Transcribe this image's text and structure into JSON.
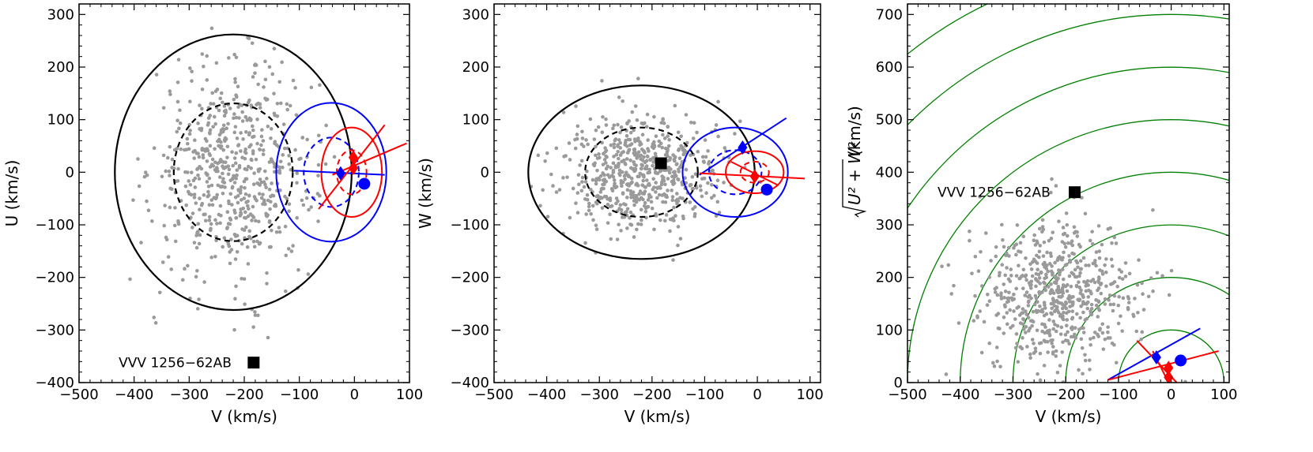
{
  "colors": {
    "scatter": "#9a9a9a",
    "thick_disk": "#000000",
    "thin_disk_blue": "#0000ff",
    "halo_red": "#ff0000",
    "energy_contour": "#008000"
  },
  "chart_data": [
    {
      "type": "scatter",
      "panel": "U-V",
      "xlabel": "V (km/s)",
      "ylabel": "U (km/s)",
      "xlim": [
        -500,
        100
      ],
      "ylim": [
        -400,
        320
      ],
      "xticks": [
        -500,
        -400,
        -300,
        -200,
        -100,
        0,
        100
      ],
      "yticks": [
        -400,
        -300,
        -200,
        -100,
        0,
        100,
        200,
        300
      ],
      "xtick_labels": [
        "−500",
        "−400",
        "−300",
        "−200",
        "−100",
        "0",
        "100"
      ],
      "ytick_labels": [
        "−400",
        "−300",
        "−200",
        "−100",
        "0",
        "100",
        "200",
        "300"
      ],
      "population": {
        "center": [
          -220,
          0
        ],
        "sd": [
          72,
          100
        ],
        "count": 620
      },
      "ellipses": [
        {
          "name": "halo-3sigma",
          "center": [
            -220,
            0
          ],
          "radii": [
            215,
            262
          ],
          "color": "#000000",
          "dashed": false
        },
        {
          "name": "halo-1.5sigma",
          "center": [
            -220,
            0
          ],
          "radii": [
            108,
            131
          ],
          "color": "#000000",
          "dashed": true
        },
        {
          "name": "thick-3sigma",
          "center": [
            -42,
            0
          ],
          "radii": [
            100,
            132
          ],
          "color": "#0000ff",
          "dashed": false
        },
        {
          "name": "thick-1.5sigma",
          "center": [
            -42,
            0
          ],
          "radii": [
            50,
            66
          ],
          "color": "#0000ff",
          "dashed": true
        },
        {
          "name": "thin-3sigma",
          "center": [
            -5,
            0
          ],
          "radii": [
            55,
            85
          ],
          "color": "#ff0000",
          "dashed": false
        },
        {
          "name": "thin-1.5sigma",
          "center": [
            -5,
            0
          ],
          "radii": [
            27,
            42
          ],
          "color": "#ff0000",
          "dashed": true
        }
      ],
      "segments": [
        {
          "from": [
            -110,
            3
          ],
          "to": [
            55,
            -5
          ],
          "color": "#0000ff"
        },
        {
          "from": [
            -65,
            -70
          ],
          "to": [
            55,
            90
          ],
          "color": "#ff0000"
        },
        {
          "from": [
            -40,
            -5
          ],
          "to": [
            95,
            55
          ],
          "color": "#ff0000"
        }
      ],
      "markers": [
        {
          "name": "blue-diamond",
          "x": -25,
          "y": -2,
          "shape": "diamond",
          "color": "#0000ff"
        },
        {
          "name": "blue-circle",
          "x": 18,
          "y": -22,
          "shape": "circle",
          "color": "#0000ff"
        },
        {
          "name": "red-diamond-1",
          "x": -2,
          "y": 28,
          "shape": "diamond",
          "color": "#ff0000"
        },
        {
          "name": "red-diamond-2",
          "x": -2,
          "y": 8,
          "shape": "diamond",
          "color": "#ff0000"
        },
        {
          "name": "vvv-square",
          "x": -183,
          "y": -362,
          "shape": "square",
          "color": "#000000"
        }
      ],
      "annotation": {
        "text": "VVV 1256−62AB",
        "x": -428,
        "y": -362
      }
    },
    {
      "type": "scatter",
      "panel": "W-V",
      "xlabel": "V (km/s)",
      "ylabel": "W (km/s)",
      "xlim": [
        -500,
        120
      ],
      "ylim": [
        -400,
        320
      ],
      "xticks": [
        -500,
        -400,
        -300,
        -200,
        -100,
        0,
        100
      ],
      "yticks": [
        -400,
        -300,
        -200,
        -100,
        0,
        100,
        200,
        300
      ],
      "xtick_labels": [
        "−500",
        "−400",
        "−300",
        "−200",
        "−100",
        "0",
        "100"
      ],
      "ytick_labels": [
        "−400",
        "−300",
        "−200",
        "−100",
        "0",
        "100",
        "200",
        "300"
      ],
      "population": {
        "center": [
          -220,
          0
        ],
        "sd": [
          72,
          55
        ],
        "count": 620
      },
      "ellipses": [
        {
          "name": "halo-3sigma",
          "center": [
            -220,
            0
          ],
          "radii": [
            215,
            165
          ],
          "color": "#000000",
          "dashed": false
        },
        {
          "name": "halo-1.5sigma",
          "center": [
            -220,
            0
          ],
          "radii": [
            107,
            85
          ],
          "color": "#000000",
          "dashed": true
        },
        {
          "name": "thick-3sigma",
          "center": [
            -42,
            0
          ],
          "radii": [
            100,
            85
          ],
          "color": "#0000ff",
          "dashed": false
        },
        {
          "name": "thick-1.5sigma",
          "center": [
            -42,
            0
          ],
          "radii": [
            50,
            42
          ],
          "color": "#0000ff",
          "dashed": true
        },
        {
          "name": "thin-3sigma",
          "center": [
            -5,
            0
          ],
          "radii": [
            55,
            40
          ],
          "color": "#ff0000",
          "dashed": false
        },
        {
          "name": "thin-1.5sigma",
          "center": [
            -5,
            0
          ],
          "radii": [
            27,
            20
          ],
          "color": "#ff0000",
          "dashed": true
        }
      ],
      "segments": [
        {
          "from": [
            -110,
            -5
          ],
          "to": [
            55,
            103
          ],
          "color": "#0000ff"
        },
        {
          "from": [
            -110,
            -2
          ],
          "to": [
            90,
            -12
          ],
          "color": "#ff0000"
        },
        {
          "from": [
            -50,
            20
          ],
          "to": [
            40,
            -25
          ],
          "color": "#ff0000"
        }
      ],
      "markers": [
        {
          "name": "blue-diamond",
          "x": -28,
          "y": 47,
          "shape": "diamond",
          "color": "#0000ff"
        },
        {
          "name": "blue-circle",
          "x": 18,
          "y": -33,
          "shape": "circle",
          "color": "#0000ff"
        },
        {
          "name": "red-diamond",
          "x": -5,
          "y": -8,
          "shape": "diamond",
          "color": "#ff0000"
        },
        {
          "name": "black-square",
          "x": -183,
          "y": 17,
          "shape": "square",
          "color": "#000000"
        }
      ],
      "annotation": null
    },
    {
      "type": "scatter",
      "panel": "Toomre",
      "xlabel": "V (km/s)",
      "ylabel": "√U² + W² (km/s)",
      "ylabel_radicand": "U² + W²",
      "ylabel_unit": " (km/s)",
      "xlim": [
        -500,
        110
      ],
      "ylim": [
        0,
        720
      ],
      "xticks": [
        -500,
        -400,
        -300,
        -200,
        -100,
        0,
        100
      ],
      "yticks": [
        0,
        100,
        200,
        300,
        400,
        500,
        600,
        700
      ],
      "xtick_labels": [
        "−500",
        "−400",
        "−300",
        "−200",
        "−100",
        "0",
        "100"
      ],
      "ytick_labels": [
        "0",
        "100",
        "200",
        "300",
        "400",
        "500",
        "600",
        "700"
      ],
      "population": {
        "center": [
          -215,
          165
        ],
        "sd": [
          75,
          70
        ],
        "count": 620
      },
      "arcs": {
        "center": [
          0,
          0
        ],
        "radii": [
          100,
          200,
          300,
          400,
          500,
          600,
          700,
          800
        ],
        "color": "#008000"
      },
      "ellipses": [],
      "segments": [
        {
          "from": [
            -120,
            5
          ],
          "to": [
            55,
            103
          ],
          "color": "#0000ff"
        },
        {
          "from": [
            -120,
            5
          ],
          "to": [
            90,
            60
          ],
          "color": "#ff0000"
        },
        {
          "from": [
            -65,
            80
          ],
          "to": [
            20,
            -10
          ],
          "color": "#ff0000"
        },
        {
          "from": [
            -35,
            60
          ],
          "to": [
            -5,
            0
          ],
          "color": "#ff0000"
        }
      ],
      "markers": [
        {
          "name": "blue-diamond",
          "x": -28,
          "y": 48,
          "shape": "diamond",
          "color": "#0000ff"
        },
        {
          "name": "blue-circle",
          "x": 18,
          "y": 42,
          "shape": "circle",
          "color": "#0000ff"
        },
        {
          "name": "red-diamond-1",
          "x": -5,
          "y": 28,
          "shape": "diamond",
          "color": "#ff0000"
        },
        {
          "name": "red-diamond-2",
          "x": -5,
          "y": 10,
          "shape": "diamond",
          "color": "#ff0000"
        },
        {
          "name": "vvv-square",
          "x": -183,
          "y": 362,
          "shape": "square",
          "color": "#000000"
        }
      ],
      "annotation": {
        "text": "VVV 1256−62AB",
        "x": -443,
        "y": 362
      }
    }
  ]
}
